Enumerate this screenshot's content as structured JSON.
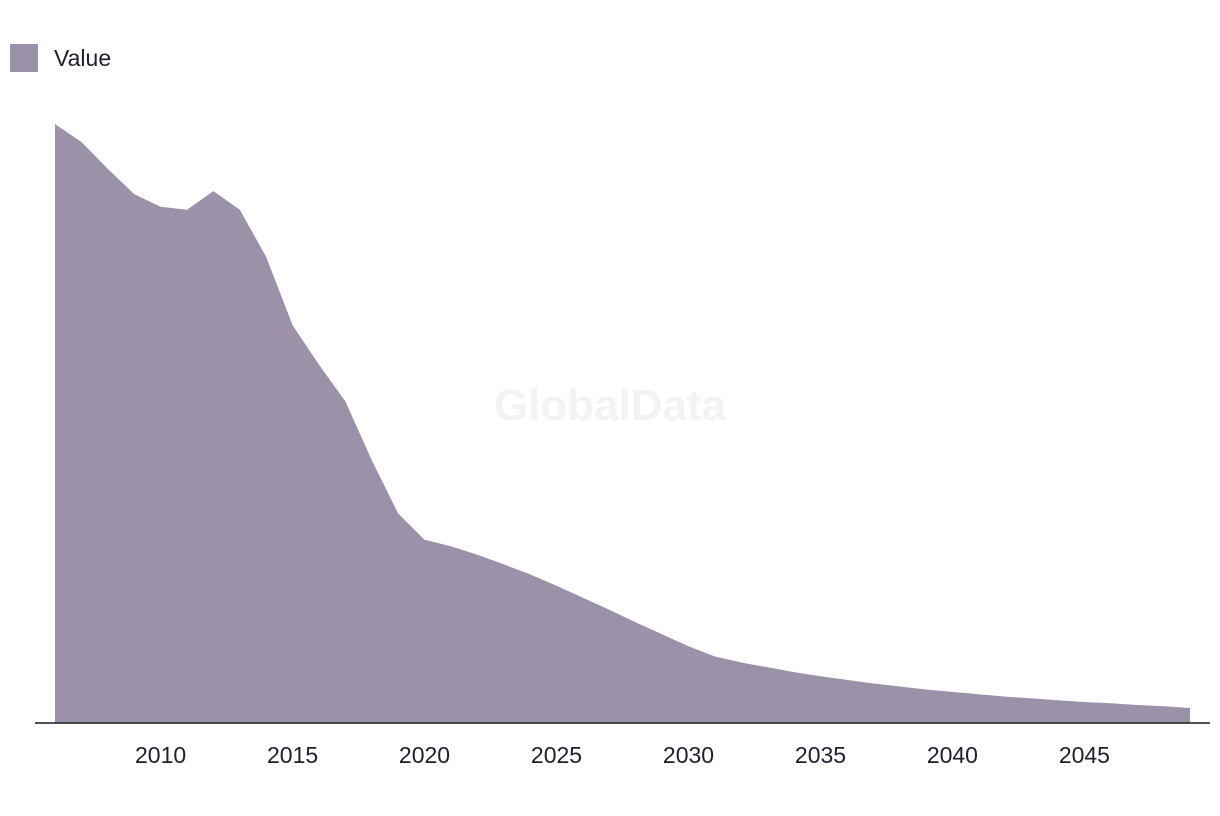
{
  "legend": {
    "label": "Value"
  },
  "watermark": "GlobalData",
  "colors": {
    "area": "#9b92aa",
    "axis": "#1a1a1a",
    "text": "#1f1f2e"
  },
  "chart_data": {
    "type": "area",
    "title": "",
    "xlabel": "",
    "ylabel": "",
    "grid": false,
    "legend_position": "top-left",
    "xlim": [
      2006,
      2049
    ],
    "ylim": [
      0,
      100
    ],
    "x_ticks": [
      2010,
      2015,
      2020,
      2025,
      2030,
      2035,
      2040,
      2045
    ],
    "series": [
      {
        "name": "Value",
        "x": [
          2006,
          2007,
          2008,
          2009,
          2010,
          2011,
          2012,
          2013,
          2014,
          2015,
          2016,
          2017,
          2018,
          2019,
          2020,
          2021,
          2022,
          2023,
          2024,
          2025,
          2026,
          2027,
          2028,
          2029,
          2030,
          2031,
          2032,
          2033,
          2034,
          2035,
          2036,
          2037,
          2038,
          2039,
          2040,
          2041,
          2042,
          2043,
          2044,
          2045,
          2046,
          2047,
          2048,
          2049
        ],
        "values": [
          100,
          97,
          92.5,
          88.3,
          86.2,
          85.7,
          88.8,
          85.7,
          77.8,
          66.4,
          59.8,
          53.7,
          43.9,
          35.0,
          30.6,
          29.5,
          28.1,
          26.5,
          24.8,
          22.9,
          20.9,
          18.9,
          16.8,
          14.8,
          12.8,
          11.1,
          10.1,
          9.3,
          8.5,
          7.8,
          7.2,
          6.6,
          6.1,
          5.6,
          5.2,
          4.8,
          4.4,
          4.1,
          3.8,
          3.5,
          3.3,
          3.0,
          2.8,
          2.5
        ]
      }
    ]
  }
}
